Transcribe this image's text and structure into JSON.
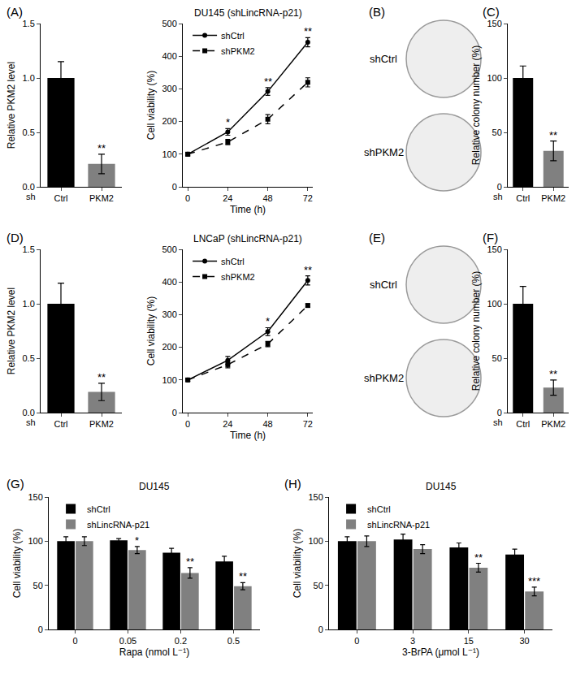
{
  "chart_data": [
    {
      "panel": "(A)",
      "type": "bar",
      "categories": [
        "Ctrl",
        "PKM2"
      ],
      "values": [
        1.0,
        0.21
      ],
      "errors": [
        0.15,
        0.09
      ],
      "colors": [
        "#000000",
        "#808080"
      ],
      "xlabel": "sh",
      "ylabel": "Relative PKM2 level",
      "ylim": [
        0,
        1.5
      ],
      "yticks": [
        {
          "value": 0,
          "label": "0.0"
        },
        {
          "value": 0.5,
          "label": "0.5"
        },
        {
          "value": 1,
          "label": "1.0"
        },
        {
          "value": 1.5,
          "label": "1.5"
        }
      ],
      "annotations": [
        {
          "category": "PKM2",
          "text": "**"
        }
      ]
    },
    {
      "type": "line",
      "title": "DU145 (shLincRNA-p21)",
      "x": [
        0,
        24,
        48,
        72
      ],
      "xlabel": "Time (h)",
      "ylabel": "Cell viability (%)",
      "xlim": [
        -3,
        75
      ],
      "xticks": [
        0,
        24,
        48,
        72
      ],
      "ylim": [
        0,
        500
      ],
      "yticks": [
        0,
        100,
        200,
        300,
        400,
        500
      ],
      "legend": "top left",
      "series": [
        {
          "name": "shCtrl",
          "color": "#000000",
          "marker": "circle",
          "line_style": "solid",
          "values": [
            100,
            168,
            292,
            443
          ],
          "errors": [
            5,
            10,
            12,
            14
          ]
        },
        {
          "name": "shPKM2",
          "color": "#000000",
          "marker": "square",
          "line_style": "dash",
          "values": [
            100,
            137,
            207,
            320
          ],
          "errors": [
            5,
            8,
            14,
            14
          ]
        }
      ],
      "annotations": [
        {
          "x": 24,
          "text": "*"
        },
        {
          "x": 48,
          "text": "**"
        },
        {
          "x": 72,
          "text": "**"
        }
      ]
    },
    {
      "panel": "(B)",
      "type": "image",
      "labels": [
        "shCtrl",
        "shPKM2"
      ]
    },
    {
      "panel": "(C)",
      "type": "bar",
      "categories": [
        "Ctrl",
        "PKM2"
      ],
      "values": [
        100,
        33
      ],
      "errors": [
        11,
        9
      ],
      "colors": [
        "#000000",
        "#808080"
      ],
      "xlabel": "sh",
      "ylabel": "Relative colony number (%)",
      "ylim": [
        0,
        150
      ],
      "yticks": [
        0,
        50,
        100,
        150
      ],
      "annotations": [
        {
          "category": "PKM2",
          "text": "**"
        }
      ]
    },
    {
      "panel": "(D)",
      "type": "bar",
      "categories": [
        "Ctrl",
        "PKM2"
      ],
      "values": [
        1.0,
        0.19
      ],
      "errors": [
        0.19,
        0.08
      ],
      "colors": [
        "#000000",
        "#808080"
      ],
      "xlabel": "sh",
      "ylabel": "Relative PKM2 level",
      "ylim": [
        0,
        1.5
      ],
      "yticks": [
        {
          "value": 0,
          "label": "0.0"
        },
        {
          "value": 0.5,
          "label": "0.5"
        },
        {
          "value": 1,
          "label": "1.0"
        },
        {
          "value": 1.5,
          "label": "1.5"
        }
      ],
      "annotations": [
        {
          "category": "PKM2",
          "text": "**"
        }
      ]
    },
    {
      "type": "line",
      "title": "LNCaP (shLincRNA-p21)",
      "x": [
        0,
        24,
        48,
        72
      ],
      "xlabel": "Time (h)",
      "ylabel": "Cell viability (%)",
      "xlim": [
        -3,
        75
      ],
      "xticks": [
        0,
        24,
        48,
        72
      ],
      "ylim": [
        0,
        500
      ],
      "yticks": [
        0,
        100,
        200,
        300,
        400,
        500
      ],
      "legend": "top left",
      "series": [
        {
          "name": "shCtrl",
          "color": "#000000",
          "marker": "circle",
          "line_style": "solid",
          "values": [
            100,
            160,
            248,
            405
          ],
          "errors": [
            4,
            12,
            12,
            14
          ]
        },
        {
          "name": "shPKM2",
          "color": "#000000",
          "marker": "square",
          "line_style": "dash",
          "values": [
            100,
            147,
            210,
            328
          ],
          "errors": [
            4,
            10,
            8,
            5
          ]
        }
      ],
      "annotations": [
        {
          "x": 48,
          "text": "*"
        },
        {
          "x": 72,
          "text": "**"
        }
      ]
    },
    {
      "panel": "(E)",
      "type": "image",
      "labels": [
        "shCtrl",
        "shPKM2"
      ]
    },
    {
      "panel": "(F)",
      "type": "bar",
      "categories": [
        "Ctrl",
        "PKM2"
      ],
      "values": [
        100,
        23
      ],
      "errors": [
        16,
        7
      ],
      "colors": [
        "#000000",
        "#808080"
      ],
      "xlabel": "sh",
      "ylabel": "Relative colony number (%)",
      "ylim": [
        0,
        150
      ],
      "yticks": [
        0,
        50,
        100,
        150
      ],
      "annotations": [
        {
          "category": "PKM2",
          "text": "**"
        }
      ]
    },
    {
      "panel": "(G)",
      "type": "bar",
      "title": "DU145",
      "categories": [
        "0",
        "0.05",
        "0.2",
        "0.5"
      ],
      "xlabel": "Rapa (nmol L⁻¹)",
      "ylabel": "Cell viability (%)",
      "ylim": [
        0,
        150
      ],
      "yticks": [
        0,
        50,
        100,
        150
      ],
      "legend": "top left",
      "series": [
        {
          "name": "shCtrl",
          "color": "#000000",
          "values": [
            100,
            101,
            87,
            77
          ],
          "errors": [
            5,
            2,
            5,
            6
          ]
        },
        {
          "name": "shLincRNA-p21",
          "color": "#808080",
          "values": [
            100,
            90,
            64,
            49
          ],
          "errors": [
            5,
            4,
            6,
            4
          ]
        }
      ],
      "annotations": [
        {
          "category": "0.05",
          "series": "shLincRNA-p21",
          "text": "*"
        },
        {
          "category": "0.2",
          "series": "shLincRNA-p21",
          "text": "**"
        },
        {
          "category": "0.5",
          "series": "shLincRNA-p21",
          "text": "**"
        }
      ]
    },
    {
      "panel": "(H)",
      "type": "bar",
      "title": "DU145",
      "categories": [
        "0",
        "3",
        "15",
        "30"
      ],
      "xlabel": "3-BrPA (μmol L⁻¹)",
      "ylabel": "Cell viability (%)",
      "ylim": [
        0,
        150
      ],
      "yticks": [
        0,
        50,
        100,
        150
      ],
      "legend": "top left",
      "series": [
        {
          "name": "shCtrl",
          "color": "#000000",
          "values": [
            100,
            102,
            93,
            85
          ],
          "errors": [
            5,
            6,
            5,
            6
          ]
        },
        {
          "name": "shLincRNA-p21",
          "color": "#808080",
          "values": [
            100,
            91,
            70,
            43
          ],
          "errors": [
            6,
            5,
            5,
            5
          ]
        }
      ],
      "annotations": [
        {
          "category": "15",
          "series": "shLincRNA-p21",
          "text": "**"
        },
        {
          "category": "30",
          "series": "shLincRNA-p21",
          "text": "***"
        }
      ]
    }
  ]
}
